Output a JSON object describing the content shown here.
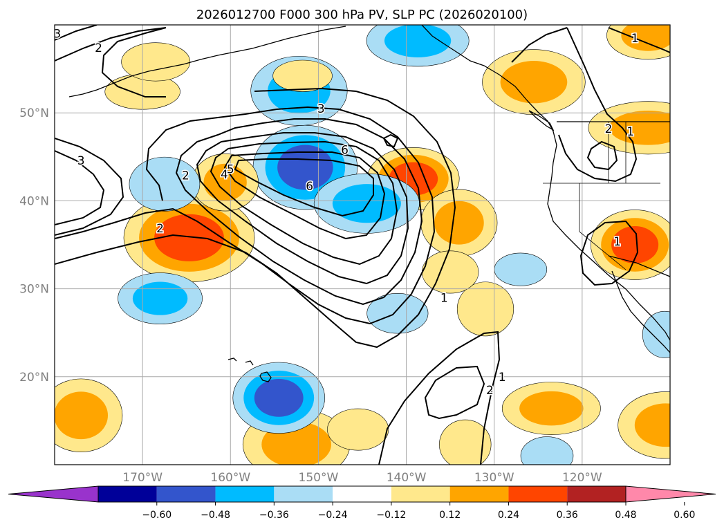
{
  "chart_data": {
    "type": "heatmap",
    "title": "2026012700 F000 300 hPa PV, SLP PC (2026020100)",
    "map": {
      "lon_range": [
        -180,
        -110
      ],
      "lat_range": [
        10,
        60
      ],
      "lon_ticks": [
        {
          "value": -170,
          "label": "170°W"
        },
        {
          "value": -160,
          "label": "160°W"
        },
        {
          "value": -150,
          "label": "150°W"
        },
        {
          "value": -140,
          "label": "140°W"
        },
        {
          "value": -130,
          "label": "130°W"
        },
        {
          "value": -120,
          "label": "120°W"
        }
      ],
      "lat_ticks": [
        {
          "value": 20,
          "label": "20°N"
        },
        {
          "value": 30,
          "label": "30°N"
        },
        {
          "value": 40,
          "label": "40°N"
        },
        {
          "value": 50,
          "label": "50°N"
        }
      ]
    },
    "colorbar": {
      "levels": [
        -0.6,
        -0.48,
        -0.36,
        -0.24,
        -0.12,
        0.12,
        0.24,
        0.36,
        0.48,
        0.6
      ],
      "tick_labels": [
        "−0.60",
        "−0.48",
        "−0.36",
        "−0.24",
        "−0.12",
        "0.12",
        "0.24",
        "0.36",
        "0.48",
        "0.60"
      ],
      "colors": [
        "#9933cc",
        "#000099",
        "#3355cc",
        "#00bbff",
        "#aaddf5",
        "#ffffff",
        "#ffe88c",
        "#ffa500",
        "#ff4500",
        "#b22222",
        "#ff88aa"
      ],
      "extend": "both"
    },
    "contour_labels": [
      {
        "text": "3",
        "lon": -179.7,
        "lat": 59.0
      },
      {
        "text": "2",
        "lon": -175.0,
        "lat": 57.4
      },
      {
        "text": "3",
        "lon": -149.7,
        "lat": 50.5
      },
      {
        "text": "3",
        "lon": -177.0,
        "lat": 44.6
      },
      {
        "text": "2",
        "lon": -165.1,
        "lat": 42.9
      },
      {
        "text": "4",
        "lon": -160.7,
        "lat": 43.0
      },
      {
        "text": "5",
        "lon": -160.0,
        "lat": 43.6
      },
      {
        "text": "6",
        "lon": -147.0,
        "lat": 45.8
      },
      {
        "text": "6",
        "lon": -151.0,
        "lat": 41.7
      },
      {
        "text": "2",
        "lon": -168.0,
        "lat": 36.9
      },
      {
        "text": "1",
        "lon": -135.7,
        "lat": 29.0
      },
      {
        "text": "2",
        "lon": -130.5,
        "lat": 18.5
      },
      {
        "text": "1",
        "lon": -129.1,
        "lat": 20.0
      },
      {
        "text": "2",
        "lon": -117.0,
        "lat": 48.2
      },
      {
        "text": "1",
        "lon": -114.5,
        "lat": 47.9
      },
      {
        "text": "1",
        "lon": -116.0,
        "lat": 35.4
      },
      {
        "text": "1",
        "lon": -114.0,
        "lat": 58.5
      }
    ],
    "slp_contour_values": [
      1,
      2,
      3,
      4,
      5,
      6,
      7
    ],
    "features": [
      {
        "value": 0.42,
        "lon": -139.2,
        "lat": 42.5
      },
      {
        "value": -0.4,
        "lon": -151.5,
        "lat": 43.8
      },
      {
        "value": -0.34,
        "lon": -144.5,
        "lat": 39.7
      },
      {
        "value": 0.38,
        "lon": -164.7,
        "lat": 35.8
      },
      {
        "value": 0.36,
        "lon": -114.0,
        "lat": 35.0
      },
      {
        "value": 0.34,
        "lon": -123.5,
        "lat": 16.4
      },
      {
        "value": 0.32,
        "lon": -152.5,
        "lat": 12.3
      },
      {
        "value": -0.42,
        "lon": -154.5,
        "lat": 17.6
      },
      {
        "value": 0.3,
        "lon": -177.0,
        "lat": 15.6
      },
      {
        "value": 0.33,
        "lon": -125.5,
        "lat": 53.5
      },
      {
        "value": 0.34,
        "lon": -112.5,
        "lat": 48.3
      },
      {
        "value": 0.3,
        "lon": -134.0,
        "lat": 37.5
      },
      {
        "value": -0.28,
        "lon": -168.0,
        "lat": 28.9
      },
      {
        "value": -0.28,
        "lon": -152.2,
        "lat": 52.5
      },
      {
        "value": 0.28,
        "lon": -160.6,
        "lat": 42.1
      },
      {
        "value": 0.3,
        "lon": -112.5,
        "lat": 58.8
      },
      {
        "value": 0.3,
        "lon": -110.5,
        "lat": 14.5
      },
      {
        "value": -0.28,
        "lon": -138.7,
        "lat": 58.2
      },
      {
        "value": 0.2,
        "lon": -131.0,
        "lat": 27.7
      },
      {
        "value": 0.18,
        "lon": -145.5,
        "lat": 14.0
      },
      {
        "value": 0.2,
        "lon": -170.0,
        "lat": 52.4
      },
      {
        "value": 0.2,
        "lon": -133.3,
        "lat": 12.3
      },
      {
        "value": -0.2,
        "lon": -141.0,
        "lat": 27.2
      },
      {
        "value": -0.2,
        "lon": -167.5,
        "lat": 41.9
      },
      {
        "value": 0.16,
        "lon": -168.5,
        "lat": 55.8
      },
      {
        "value": -0.18,
        "lon": -127.0,
        "lat": 32.2
      },
      {
        "value": 0.16,
        "lon": -135.0,
        "lat": 31.9
      },
      {
        "value": 0.14,
        "lon": -151.8,
        "lat": 54.2
      },
      {
        "value": -0.16,
        "lon": -110.6,
        "lat": 24.8
      },
      {
        "value": -0.16,
        "lon": -124.0,
        "lat": 11.0
      }
    ]
  }
}
